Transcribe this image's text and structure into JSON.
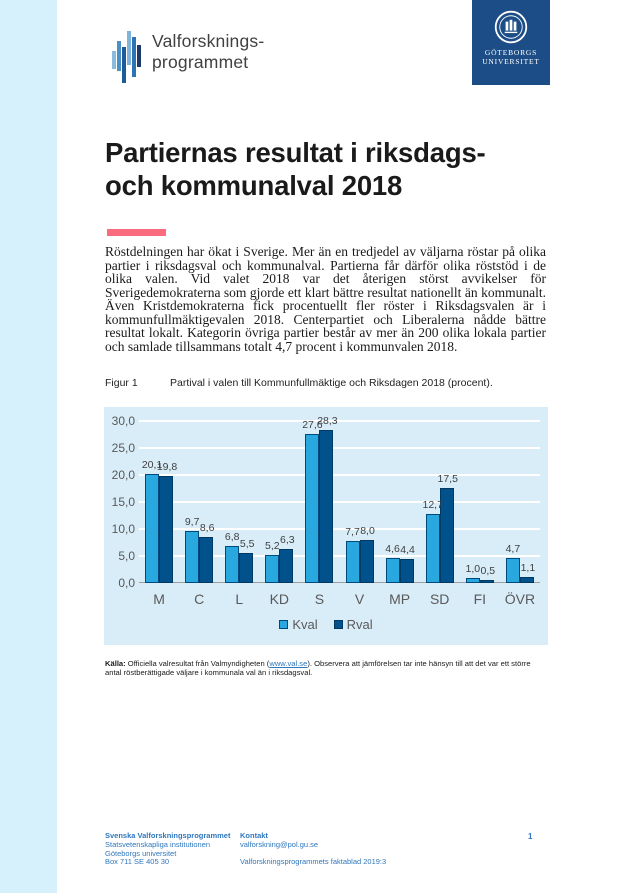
{
  "page": {
    "side_band_color": "#d6f0fc"
  },
  "header": {
    "logo": {
      "line1": "Valforsknings-",
      "line2": "programmet"
    },
    "university": {
      "line1": "GÖTEBORGS",
      "line2": "UNIVERSITET",
      "bg_color": "#1c4d86"
    }
  },
  "title": {
    "line1": "Partiernas resultat i riksdags-",
    "line2": "och kommunalval 2018",
    "accent_color": "#fb6b7f"
  },
  "intro": "Röstdelningen har ökat i Sverige. Mer än en tredjedel av väljarna röstar på olika partier i riksdagsval och kommunalval. Partierna får därför olika röststöd i de olika valen. Vid valet 2018 var det återigen störst avvikelser för Sverigedemokraterna som gjorde ett klart bättre resultat nationellt än kommunalt. Även Kristdemokraterna fick procentuellt fler röster i Riksdagsvalen är i kommunfullmäktigevalen 2018. Centerpartiet och Liberalerna nådde bättre resultat lokalt. Kategorin övriga partier består av mer än 200 olika lokala partier och samlade tillsammans totalt 4,7 procent i kommunvalen 2018.",
  "figure": {
    "label": "Figur 1",
    "caption": "Partival i valen till Kommunfullmäktige och Riksdagen 2018 (procent)."
  },
  "chart_data": {
    "type": "bar",
    "categories": [
      "M",
      "C",
      "L",
      "KD",
      "S",
      "V",
      "MP",
      "SD",
      "FI",
      "ÖVR"
    ],
    "series": [
      {
        "name": "Kval",
        "color": "#29a8e0",
        "values": [
          20.1,
          9.7,
          6.8,
          5.2,
          27.6,
          7.7,
          4.6,
          12.7,
          1.0,
          4.7
        ]
      },
      {
        "name": "Rval",
        "color": "#00518c",
        "values": [
          19.8,
          8.6,
          5.5,
          6.3,
          28.3,
          8.0,
          4.4,
          17.5,
          0.5,
          1.1
        ]
      }
    ],
    "title": "",
    "xlabel": "",
    "ylabel": "",
    "ylim": [
      0,
      30
    ],
    "ytick_step": 5,
    "ytick_labels": [
      "0,0",
      "5,0",
      "10,0",
      "15,0",
      "20,0",
      "25,0",
      "30,0"
    ],
    "grid": true,
    "legend_position": "bottom",
    "background": "#d9edf9",
    "decimal_separator": ","
  },
  "source_note": {
    "prefix": "Källa:",
    "before_link": " Officiella valresultat från Valmyndigheten (",
    "link": "www.val.se",
    "after_link": "). Observera att jämförelsen tar inte hänsyn till att det var ett större antal röstberättigade väljare i kommunala val än i riksdagsval."
  },
  "footer": {
    "org": [
      "Svenska Valforskningsprogrammet",
      "Statsvetenskapliga institutionen",
      "Göteborgs universitet",
      "Box 711 SE 405 30"
    ],
    "contact_label": "Kontakt",
    "contact_email": "valforskning@pol.gu.se",
    "publication": "Valforskningsprogrammets faktablad 2019:3",
    "page_number": "1"
  }
}
